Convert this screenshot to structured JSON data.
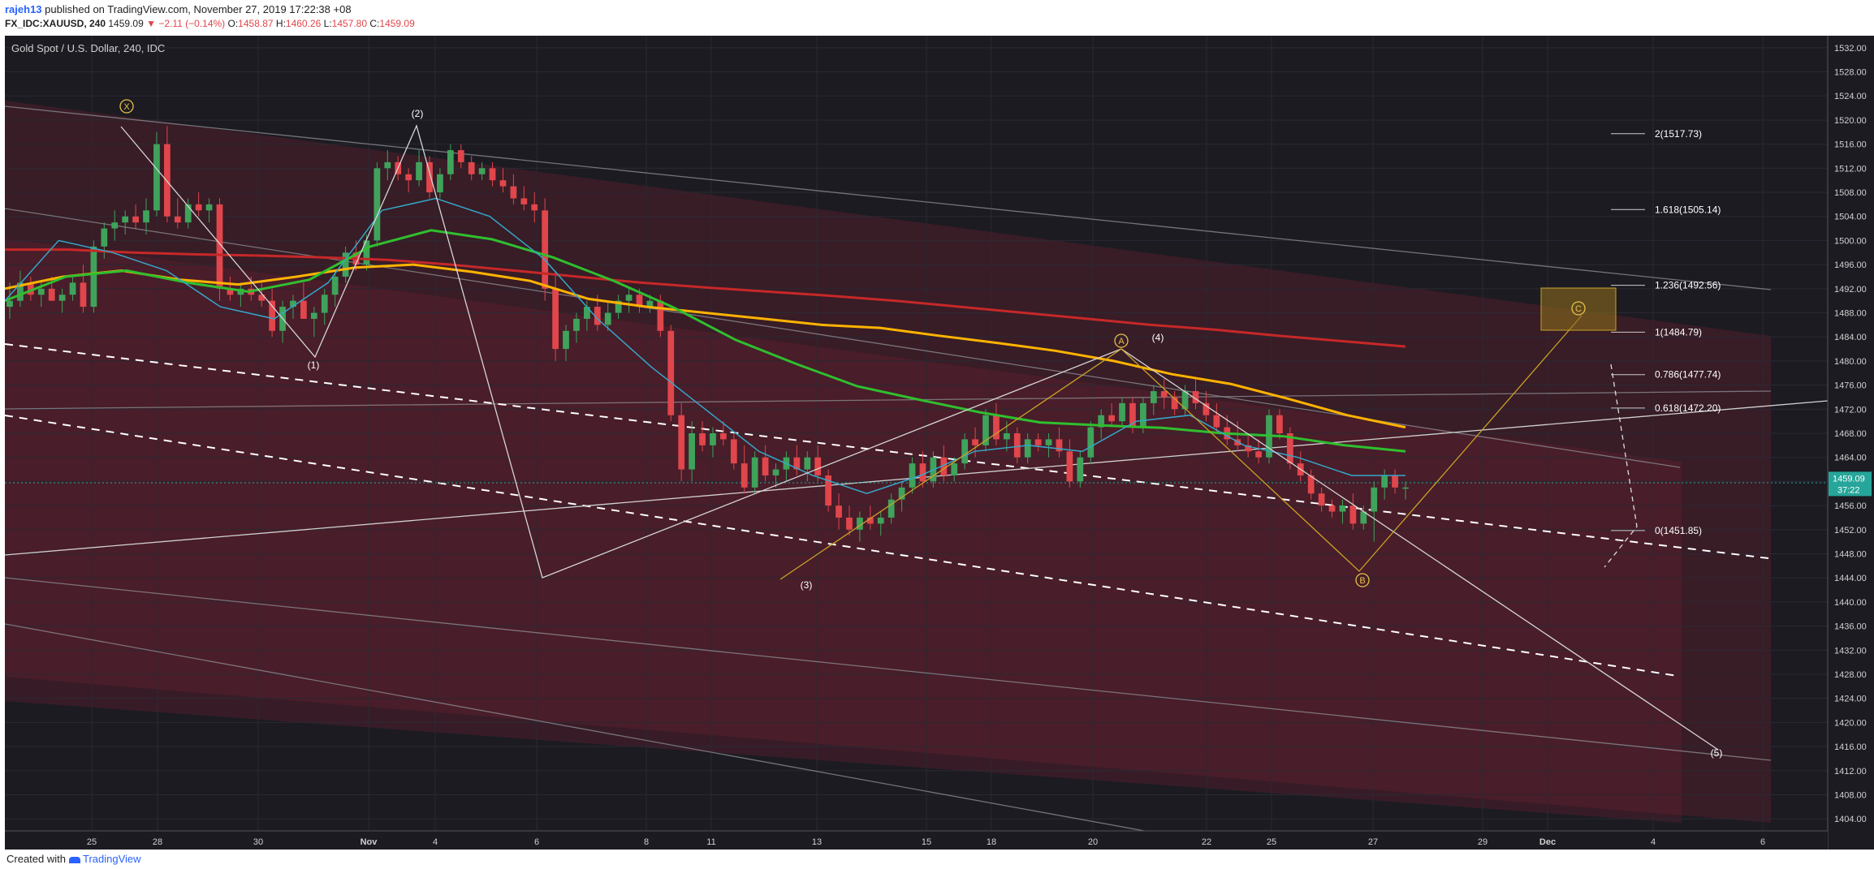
{
  "header": {
    "user": "rajeh13",
    "published": "published on TradingView.com, November 27, 2019 17:22:38 +08",
    "symbol": "FX_IDC:XAUUSD, 240",
    "price": "1459.09",
    "change": "▼ −2.11 (−0.14%)",
    "o_label": "O:",
    "o_val": "1458.87",
    "h_label": "H:",
    "h_val": "1460.26",
    "l_label": "L:",
    "l_val": "1457.80",
    "c_label": "C:",
    "c_val": "1459.09"
  },
  "footer": {
    "prefix": "Created with",
    "brand": "TradingView"
  },
  "colors": {
    "background": "#1c1b22",
    "up": "#3fa35b",
    "down": "#e0464b",
    "ma_red": "#c62828",
    "ma_orange": "#ffb300",
    "ma_green": "#2fbf2f",
    "ma_cyan": "#35a7c9",
    "price_badge": "#26a69a"
  },
  "chart_data": {
    "type": "candlestick",
    "title": "Gold Spot / U.S. Dollar, 240, IDC",
    "ylim": [
      1402,
      1534
    ],
    "y_ticks": [
      1404,
      1408,
      1412,
      1416,
      1420,
      1424,
      1428,
      1432,
      1436,
      1440,
      1444,
      1448,
      1452,
      1456,
      1460,
      1464,
      1468,
      1472,
      1476,
      1480,
      1484,
      1488,
      1492,
      1496,
      1500,
      1504,
      1508,
      1512,
      1516,
      1520,
      1524,
      1528,
      1532
    ],
    "x_ticks": [
      "25",
      "28",
      "30",
      "Nov",
      "4",
      "6",
      "8",
      "11",
      "13",
      "15",
      "18",
      "20",
      "22",
      "25",
      "27",
      "29",
      "Dec",
      "4",
      "6"
    ],
    "last_price": "1459.09",
    "countdown": "37:22",
    "candles": [
      [
        1489,
        1493,
        1487,
        1490
      ],
      [
        1490,
        1495,
        1489,
        1493
      ],
      [
        1493,
        1494,
        1490,
        1491
      ],
      [
        1491,
        1493,
        1489,
        1492
      ],
      [
        1492,
        1494,
        1490,
        1490
      ],
      [
        1490,
        1492,
        1488,
        1491
      ],
      [
        1491,
        1494,
        1490,
        1493
      ],
      [
        1493,
        1496,
        1488,
        1489
      ],
      [
        1489,
        1500,
        1488,
        1499
      ],
      [
        1499,
        1503,
        1497,
        1502
      ],
      [
        1502,
        1505,
        1500,
        1503
      ],
      [
        1503,
        1505,
        1501,
        1504
      ],
      [
        1504,
        1506,
        1502,
        1503
      ],
      [
        1503,
        1507,
        1501,
        1505
      ],
      [
        1505,
        1518,
        1504,
        1516
      ],
      [
        1516,
        1519,
        1503,
        1504
      ],
      [
        1504,
        1507,
        1502,
        1503
      ],
      [
        1503,
        1507,
        1502,
        1506
      ],
      [
        1506,
        1508,
        1504,
        1505
      ],
      [
        1505,
        1507,
        1503,
        1506
      ],
      [
        1506,
        1507,
        1490,
        1492
      ],
      [
        1492,
        1494,
        1490,
        1491
      ],
      [
        1491,
        1493,
        1489,
        1492
      ],
      [
        1492,
        1494,
        1490,
        1491
      ],
      [
        1491,
        1493,
        1489,
        1490
      ],
      [
        1490,
        1492,
        1484,
        1485
      ],
      [
        1485,
        1490,
        1483,
        1489
      ],
      [
        1489,
        1491,
        1487,
        1490
      ],
      [
        1490,
        1493,
        1488,
        1487
      ],
      [
        1487,
        1489,
        1484,
        1488
      ],
      [
        1488,
        1492,
        1486,
        1491
      ],
      [
        1491,
        1495,
        1489,
        1494
      ],
      [
        1494,
        1499,
        1493,
        1498
      ],
      [
        1498,
        1500,
        1495,
        1496
      ],
      [
        1496,
        1501,
        1495,
        1500
      ],
      [
        1500,
        1513,
        1499,
        1512
      ],
      [
        1512,
        1515,
        1510,
        1513
      ],
      [
        1513,
        1514,
        1510,
        1511
      ],
      [
        1511,
        1512,
        1508,
        1510
      ],
      [
        1510,
        1515,
        1509,
        1513
      ],
      [
        1513,
        1514,
        1507,
        1508
      ],
      [
        1508,
        1512,
        1507,
        1511
      ],
      [
        1511,
        1516,
        1510,
        1515
      ],
      [
        1515,
        1516,
        1512,
        1513
      ],
      [
        1513,
        1514,
        1510,
        1511
      ],
      [
        1511,
        1513,
        1510,
        1512
      ],
      [
        1512,
        1513,
        1509,
        1510
      ],
      [
        1510,
        1512,
        1508,
        1509
      ],
      [
        1509,
        1511,
        1506,
        1507
      ],
      [
        1507,
        1509,
        1505,
        1506
      ],
      [
        1506,
        1508,
        1503,
        1505
      ],
      [
        1505,
        1507,
        1490,
        1492
      ],
      [
        1492,
        1495,
        1480,
        1482
      ],
      [
        1482,
        1486,
        1480,
        1485
      ],
      [
        1485,
        1488,
        1483,
        1487
      ],
      [
        1487,
        1490,
        1485,
        1489
      ],
      [
        1489,
        1491,
        1485,
        1486
      ],
      [
        1486,
        1490,
        1485,
        1488
      ],
      [
        1488,
        1491,
        1487,
        1490
      ],
      [
        1490,
        1492,
        1488,
        1491
      ],
      [
        1491,
        1492,
        1488,
        1489
      ],
      [
        1489,
        1491,
        1488,
        1490
      ],
      [
        1490,
        1491,
        1484,
        1485
      ],
      [
        1485,
        1486,
        1470,
        1471
      ],
      [
        1471,
        1473,
        1460,
        1462
      ],
      [
        1462,
        1470,
        1460,
        1468
      ],
      [
        1468,
        1470,
        1465,
        1466
      ],
      [
        1466,
        1469,
        1464,
        1468
      ],
      [
        1468,
        1470,
        1466,
        1467
      ],
      [
        1467,
        1468,
        1462,
        1463
      ],
      [
        1463,
        1466,
        1458,
        1459
      ],
      [
        1459,
        1465,
        1458,
        1464
      ],
      [
        1464,
        1466,
        1460,
        1461
      ],
      [
        1461,
        1463,
        1459,
        1462
      ],
      [
        1462,
        1465,
        1460,
        1464
      ],
      [
        1464,
        1466,
        1461,
        1462
      ],
      [
        1462,
        1465,
        1460,
        1464
      ],
      [
        1464,
        1466,
        1460,
        1461
      ],
      [
        1461,
        1462,
        1455,
        1456
      ],
      [
        1456,
        1458,
        1452,
        1454
      ],
      [
        1454,
        1456,
        1451,
        1452
      ],
      [
        1452,
        1455,
        1450,
        1454
      ],
      [
        1454,
        1456,
        1452,
        1453
      ],
      [
        1453,
        1455,
        1451,
        1454
      ],
      [
        1454,
        1458,
        1453,
        1457
      ],
      [
        1457,
        1460,
        1455,
        1459
      ],
      [
        1459,
        1464,
        1458,
        1463
      ],
      [
        1463,
        1465,
        1459,
        1460
      ],
      [
        1460,
        1465,
        1459,
        1464
      ],
      [
        1464,
        1466,
        1460,
        1461
      ],
      [
        1461,
        1464,
        1460,
        1463
      ],
      [
        1463,
        1468,
        1462,
        1467
      ],
      [
        1467,
        1469,
        1464,
        1466
      ],
      [
        1466,
        1472,
        1465,
        1471
      ],
      [
        1471,
        1473,
        1466,
        1467
      ],
      [
        1467,
        1470,
        1465,
        1468
      ],
      [
        1468,
        1469,
        1463,
        1464
      ],
      [
        1464,
        1468,
        1463,
        1467
      ],
      [
        1467,
        1468,
        1465,
        1466
      ],
      [
        1466,
        1468,
        1464,
        1467
      ],
      [
        1467,
        1469,
        1464,
        1465
      ],
      [
        1465,
        1467,
        1459,
        1460
      ],
      [
        1460,
        1465,
        1459,
        1464
      ],
      [
        1464,
        1470,
        1463,
        1469
      ],
      [
        1469,
        1472,
        1467,
        1471
      ],
      [
        1471,
        1473,
        1469,
        1470
      ],
      [
        1470,
        1474,
        1469,
        1473
      ],
      [
        1473,
        1474,
        1468,
        1469
      ],
      [
        1469,
        1474,
        1468,
        1473
      ],
      [
        1473,
        1476,
        1471,
        1475
      ],
      [
        1475,
        1477,
        1472,
        1474
      ],
      [
        1474,
        1475,
        1471,
        1472
      ],
      [
        1472,
        1476,
        1471,
        1475
      ],
      [
        1475,
        1477,
        1472,
        1473
      ],
      [
        1473,
        1475,
        1470,
        1471
      ],
      [
        1471,
        1473,
        1468,
        1469
      ],
      [
        1469,
        1471,
        1466,
        1467
      ],
      [
        1467,
        1470,
        1465,
        1466
      ],
      [
        1466,
        1468,
        1464,
        1465
      ],
      [
        1465,
        1467,
        1463,
        1464
      ],
      [
        1464,
        1472,
        1463,
        1471
      ],
      [
        1471,
        1472,
        1467,
        1468
      ],
      [
        1468,
        1469,
        1462,
        1463
      ],
      [
        1463,
        1465,
        1460,
        1461
      ],
      [
        1461,
        1462,
        1457,
        1458
      ],
      [
        1458,
        1459,
        1455,
        1456
      ],
      [
        1456,
        1457,
        1454,
        1455
      ],
      [
        1455,
        1457,
        1453,
        1456
      ],
      [
        1456,
        1458,
        1452,
        1453
      ],
      [
        1453,
        1456,
        1452,
        1455
      ],
      [
        1455,
        1460,
        1450,
        1459
      ],
      [
        1459,
        1462,
        1457,
        1461
      ],
      [
        1461,
        1462,
        1458,
        1459
      ],
      [
        1459,
        1460,
        1457,
        1459
      ]
    ],
    "moving_averages": [
      {
        "color": "#c62828",
        "values": [
          1498.5,
          1498.5,
          1498,
          1497.7,
          1497.5,
          1497.2,
          1496.8,
          1496,
          1495,
          1494,
          1493,
          1492.2,
          1491.5,
          1490.8,
          1490,
          1489,
          1488,
          1487,
          1486,
          1485.2,
          1484.2,
          1483.3,
          1482.4
        ]
      },
      {
        "color": "#ffb300",
        "values": [
          1492,
          1494,
          1495,
          1493.5,
          1492.7,
          1494,
          1495.5,
          1496,
          1494.8,
          1493.3,
          1490.3,
          1489,
          1488,
          1487,
          1486,
          1485.5,
          1484.2,
          1483,
          1481.7,
          1480,
          1477.8,
          1476.2,
          1473.7,
          1471,
          1469
        ]
      },
      {
        "color": "#2fbf2f",
        "values": [
          1490,
          1494,
          1495,
          1493,
          1491.5,
          1493.5,
          1499,
          1501.7,
          1500.2,
          1497.2,
          1493.3,
          1488.8,
          1483.5,
          1479.5,
          1475.8,
          1473.6,
          1471.5,
          1469.8,
          1469.3,
          1468.9,
          1468,
          1467.5,
          1466,
          1465
        ]
      },
      {
        "color": "#35a7c9",
        "values": [
          1490,
          1500,
          1498,
          1495,
          1489,
          1487,
          1493,
          1505,
          1507,
          1504,
          1497,
          1487,
          1479,
          1472,
          1465,
          1461,
          1458,
          1461,
          1465,
          1466,
          1465,
          1470,
          1471,
          1466,
          1464,
          1461,
          1461
        ]
      }
    ],
    "fibonacci": [
      {
        "label": "2(1517.73)",
        "value": 1517.73
      },
      {
        "label": "1.618(1505.14)",
        "value": 1505.14
      },
      {
        "label": "1.236(1492.56)",
        "value": 1492.56
      },
      {
        "label": "1(1484.79)",
        "value": 1484.79
      },
      {
        "label": "0.786(1477.74)",
        "value": 1477.74
      },
      {
        "label": "0.618(1472.20)",
        "value": 1472.2
      },
      {
        "label": "0(1451.85)",
        "value": 1451.85
      }
    ],
    "wave_labels": [
      "X",
      "(1)",
      "(2)",
      "(3)",
      "(4)",
      "(5)",
      "A",
      "B",
      "C"
    ]
  }
}
